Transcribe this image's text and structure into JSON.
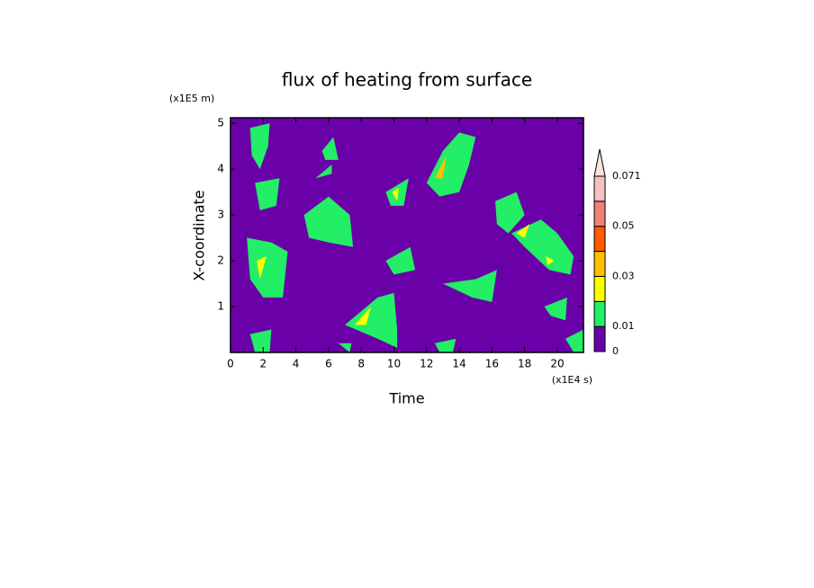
{
  "chart_data": {
    "type": "contour",
    "title": "flux of heating from surface",
    "xlabel": "Time",
    "ylabel": "X-coordinate",
    "x_unit": "(x1E4 s)",
    "y_unit": "(x1E5 m)",
    "xlim": [
      0,
      21.6
    ],
    "ylim": [
      0,
      5.12
    ],
    "xticks": [
      0,
      2,
      4,
      6,
      8,
      10,
      12,
      14,
      16,
      18,
      20
    ],
    "yticks": [
      1,
      2,
      3,
      4,
      5
    ],
    "levels": [
      0,
      0.01,
      0.02,
      0.03,
      0.04,
      0.05,
      0.06,
      0.071
    ],
    "colors": [
      "#6a00a8",
      "#22ee66",
      "#ffff00",
      "#ffc000",
      "#ff5a00",
      "#f08078",
      "#f8c0c0"
    ],
    "extend_color": "#fde0e0",
    "colorbar_ticks": [
      0,
      0.01,
      0.03,
      0.05,
      0.071
    ],
    "regions": [
      {
        "level": 1,
        "points": [
          [
            1.2,
            4.9
          ],
          [
            2.4,
            5.0
          ],
          [
            2.3,
            4.5
          ],
          [
            1.8,
            4.0
          ],
          [
            1.3,
            4.3
          ]
        ]
      },
      {
        "level": 1,
        "points": [
          [
            1.5,
            3.7
          ],
          [
            3.0,
            3.8
          ],
          [
            2.8,
            3.2
          ],
          [
            1.8,
            3.1
          ]
        ]
      },
      {
        "level": 1,
        "points": [
          [
            1.0,
            2.5
          ],
          [
            2.5,
            2.4
          ],
          [
            3.5,
            2.2
          ],
          [
            3.2,
            1.2
          ],
          [
            2.0,
            1.2
          ],
          [
            1.2,
            1.6
          ]
        ]
      },
      {
        "level": 2,
        "points": [
          [
            1.6,
            2.0
          ],
          [
            2.2,
            2.1
          ],
          [
            1.8,
            1.6
          ]
        ]
      },
      {
        "level": 1,
        "points": [
          [
            1.2,
            0.4
          ],
          [
            2.5,
            0.5
          ],
          [
            2.4,
            0.0
          ],
          [
            1.5,
            0.0
          ]
        ]
      },
      {
        "level": 1,
        "points": [
          [
            4.5,
            3.0
          ],
          [
            6.0,
            3.4
          ],
          [
            7.3,
            3.0
          ],
          [
            7.5,
            2.3
          ],
          [
            6.0,
            2.4
          ],
          [
            4.8,
            2.5
          ]
        ]
      },
      {
        "level": 1,
        "points": [
          [
            5.6,
            4.4
          ],
          [
            6.3,
            4.7
          ],
          [
            6.6,
            4.2
          ],
          [
            5.8,
            4.2
          ]
        ]
      },
      {
        "level": 1,
        "points": [
          [
            5.2,
            3.8
          ],
          [
            6.2,
            4.1
          ],
          [
            6.2,
            3.9
          ]
        ]
      },
      {
        "level": 1,
        "points": [
          [
            9.5,
            3.5
          ],
          [
            10.9,
            3.8
          ],
          [
            10.6,
            3.2
          ],
          [
            9.8,
            3.2
          ]
        ]
      },
      {
        "level": 2,
        "points": [
          [
            9.9,
            3.5
          ],
          [
            10.3,
            3.6
          ],
          [
            10.2,
            3.3
          ]
        ]
      },
      {
        "level": 1,
        "points": [
          [
            9.5,
            2.0
          ],
          [
            11.0,
            2.3
          ],
          [
            11.3,
            1.8
          ],
          [
            10.0,
            1.7
          ]
        ]
      },
      {
        "level": 1,
        "points": [
          [
            7.0,
            0.6
          ],
          [
            9.0,
            1.2
          ],
          [
            10.0,
            1.3
          ],
          [
            10.2,
            0.5
          ],
          [
            10.2,
            0.1
          ],
          [
            9.0,
            0.3
          ]
        ]
      },
      {
        "level": 2,
        "points": [
          [
            7.6,
            0.6
          ],
          [
            8.6,
            1.0
          ],
          [
            8.3,
            0.6
          ]
        ]
      },
      {
        "level": 1,
        "points": [
          [
            12.0,
            3.7
          ],
          [
            13.0,
            4.4
          ],
          [
            14.0,
            4.8
          ],
          [
            15.0,
            4.7
          ],
          [
            14.6,
            4.1
          ],
          [
            14.0,
            3.5
          ],
          [
            12.8,
            3.4
          ]
        ]
      },
      {
        "level": 3,
        "points": [
          [
            12.5,
            3.8
          ],
          [
            13.2,
            4.3
          ],
          [
            13.0,
            3.8
          ]
        ]
      },
      {
        "level": 1,
        "points": [
          [
            13.0,
            1.5
          ],
          [
            15.0,
            1.6
          ],
          [
            16.3,
            1.8
          ],
          [
            16.0,
            1.1
          ],
          [
            14.8,
            1.2
          ]
        ]
      },
      {
        "level": 1,
        "points": [
          [
            16.2,
            3.3
          ],
          [
            17.5,
            3.5
          ],
          [
            18.0,
            3.0
          ],
          [
            17.0,
            2.6
          ],
          [
            16.3,
            2.8
          ]
        ]
      },
      {
        "level": 1,
        "points": [
          [
            17.2,
            2.6
          ],
          [
            19.0,
            2.9
          ],
          [
            20.0,
            2.6
          ],
          [
            21.0,
            2.1
          ],
          [
            20.8,
            1.7
          ],
          [
            19.5,
            1.8
          ],
          [
            18.0,
            2.3
          ]
        ]
      },
      {
        "level": 2,
        "points": [
          [
            17.5,
            2.6
          ],
          [
            18.3,
            2.8
          ],
          [
            18.0,
            2.5
          ]
        ]
      },
      {
        "level": 2,
        "points": [
          [
            19.3,
            2.1
          ],
          [
            19.8,
            2.0
          ],
          [
            19.4,
            1.9
          ]
        ]
      },
      {
        "level": 1,
        "points": [
          [
            19.2,
            1.0
          ],
          [
            20.6,
            1.2
          ],
          [
            20.5,
            0.7
          ],
          [
            19.6,
            0.8
          ]
        ]
      },
      {
        "level": 1,
        "points": [
          [
            20.5,
            0.3
          ],
          [
            21.6,
            0.5
          ],
          [
            21.6,
            0.0
          ],
          [
            21.0,
            0.0
          ]
        ]
      },
      {
        "level": 1,
        "points": [
          [
            12.5,
            0.2
          ],
          [
            13.8,
            0.3
          ],
          [
            13.6,
            0.0
          ],
          [
            12.8,
            0.0
          ]
        ]
      },
      {
        "level": 1,
        "points": [
          [
            6.6,
            0.2
          ],
          [
            7.4,
            0.2
          ],
          [
            7.3,
            0.0
          ]
        ]
      }
    ]
  }
}
